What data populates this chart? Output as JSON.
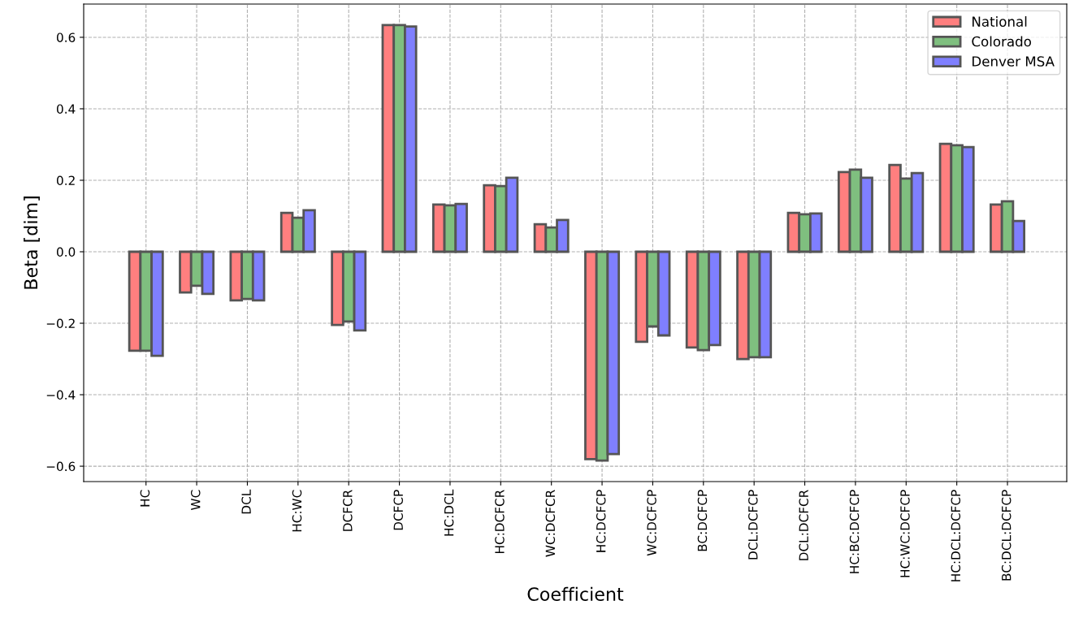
{
  "chart_data": {
    "type": "bar",
    "xlabel": "Coefficient",
    "ylabel": "Beta [dim]",
    "categories": [
      "HC",
      "WC",
      "DCL",
      "HC:WC",
      "DCFCR",
      "DCFCP",
      "HC:DCL",
      "HC:DCFCR",
      "WC:DCFCR",
      "HC:DCFCP",
      "WC:DCFCP",
      "BC:DCFCP",
      "DCL:DCFCP",
      "DCL:DCFCR",
      "HC:BC:DCFCP",
      "HC:WC:DCFCP",
      "HC:DCL:DCFCP",
      "BC:DCL:DCFCP"
    ],
    "series": [
      {
        "name": "National",
        "color": "#ff7f7f",
        "values": [
          -0.277,
          -0.114,
          -0.136,
          0.109,
          -0.205,
          0.634,
          0.132,
          0.186,
          0.077,
          -0.58,
          -0.252,
          -0.268,
          -0.3,
          0.109,
          0.223,
          0.243,
          0.302,
          0.132
        ]
      },
      {
        "name": "Colorado",
        "color": "#7fbf7f",
        "values": [
          -0.277,
          -0.095,
          -0.132,
          0.095,
          -0.195,
          0.634,
          0.13,
          0.184,
          0.068,
          -0.584,
          -0.209,
          -0.275,
          -0.295,
          0.105,
          0.23,
          0.205,
          0.298,
          0.141
        ]
      },
      {
        "name": "Denver MSA",
        "color": "#7f7fff",
        "values": [
          -0.291,
          -0.118,
          -0.136,
          0.116,
          -0.22,
          0.63,
          0.134,
          0.207,
          0.089,
          -0.566,
          -0.234,
          -0.261,
          -0.295,
          0.107,
          0.207,
          0.22,
          0.293,
          0.086
        ]
      }
    ],
    "ylim": [
      -0.643,
      0.693
    ],
    "yticks": [
      {
        "value": -0.6,
        "label": "−0.6"
      },
      {
        "value": -0.4,
        "label": "−0.4"
      },
      {
        "value": -0.2,
        "label": "−0.2"
      },
      {
        "value": 0.0,
        "label": "0.0"
      },
      {
        "value": 0.2,
        "label": "0.2"
      },
      {
        "value": 0.4,
        "label": "0.4"
      },
      {
        "value": 0.6,
        "label": "0.6"
      }
    ],
    "grid": true,
    "legend": "top right"
  }
}
